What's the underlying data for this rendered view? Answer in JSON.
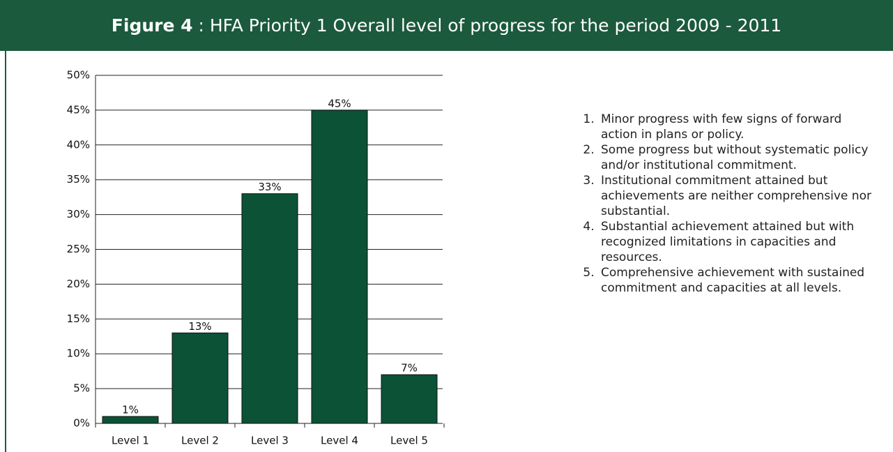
{
  "chart_data": {
    "type": "bar",
    "title_label": "Figure 4",
    "title": " : HFA Priority 1 Overall level of progress for the period 2009 - 2011",
    "categories": [
      "Level 1",
      "Level 2",
      "Level 3",
      "Level 4",
      "Level 5"
    ],
    "values": [
      1,
      13,
      33,
      45,
      7
    ],
    "value_labels": [
      "1%",
      "13%",
      "33%",
      "45%",
      "7%"
    ],
    "color": "#0b5237",
    "ylim": [
      0,
      50
    ],
    "yticks": [
      {
        "value": 0,
        "label": "0%"
      },
      {
        "value": 5,
        "label": "5%"
      },
      {
        "value": 10,
        "label": "10%"
      },
      {
        "value": 15,
        "label": "15%"
      },
      {
        "value": 20,
        "label": "20%"
      },
      {
        "value": 25,
        "label": "25%"
      },
      {
        "value": 30,
        "label": "30%"
      },
      {
        "value": 35,
        "label": "35%"
      },
      {
        "value": 40,
        "label": "40%"
      },
      {
        "value": 45,
        "label": "45%"
      },
      {
        "value": 50,
        "label": "50%"
      }
    ],
    "grid": true,
    "notes": [
      "Minor progress with few signs of forward action in plans or policy.",
      "Some progress but without systematic policy and/or institutional commitment.",
      "Institutional commitment attained but achievements are neither comprehensive nor substantial.",
      "Substantial achievement attained but with recognized limitations in capacities and resources.",
      "Comprehensive achievement with sustained commitment and capacities at all levels."
    ]
  }
}
